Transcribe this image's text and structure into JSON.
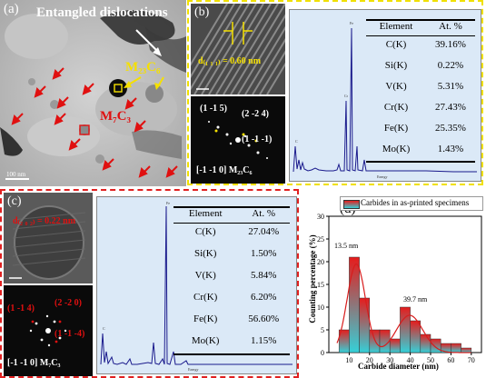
{
  "panel_a": {
    "label": "(a)",
    "annotation_dislocations": "Entangled dislocations",
    "annotation_m23c6": "M₂₃C₆",
    "annotation_m7c3": "M₇C₃",
    "scale_bar": "100 nm"
  },
  "panel_b": {
    "label": "(b)",
    "d_spacing": "d₍₁ ₁ ₁₎ = 0.60 nm",
    "fft_labels": [
      "(1 -1 5)",
      "(2 -2 4)",
      "(1 -1 -1)"
    ],
    "zone_axis": "[-1 -1 0] M₂₃C₆",
    "table": {
      "headers": [
        "Element",
        "At. %"
      ],
      "rows": [
        [
          "C(K)",
          "39.16%"
        ],
        [
          "Si(K)",
          "0.22%"
        ],
        [
          "V(K)",
          "5.31%"
        ],
        [
          "Cr(K)",
          "27.43%"
        ],
        [
          "Fe(K)",
          "25.35%"
        ],
        [
          "Mo(K)",
          "1.43%"
        ]
      ]
    }
  },
  "panel_c": {
    "label": "(c)",
    "d_spacing": "d₍₂ ₀ ₂₎ = 0.22 nm",
    "fft_labels": [
      "(1 -1 4)",
      "(2 -2 0)",
      "(1 -1 -4)"
    ],
    "zone_axis": "[-1 -1 0] M₇C₃",
    "table": {
      "headers": [
        "Element",
        "At. %"
      ],
      "rows": [
        [
          "C(K)",
          "27.04%"
        ],
        [
          "Si(K)",
          "1.50%"
        ],
        [
          "V(K)",
          "5.84%"
        ],
        [
          "Cr(K)",
          "6.20%"
        ],
        [
          "Fe(K)",
          "56.60%"
        ],
        [
          "Mo(K)",
          "1.15%"
        ]
      ]
    }
  },
  "panel_d": {
    "label": "(d)",
    "peak1_label": "13.5 nm",
    "peak2_label": "39.7 nm"
  },
  "chart_data": {
    "type": "bar",
    "legend": "Carbides in as-printed specimens",
    "xlabel": "Carbide diameter (nm)",
    "ylabel": "Counting percentage (%)",
    "xlim": [
      0,
      75
    ],
    "ylim": [
      0,
      30
    ],
    "xticks": [
      "10",
      "20",
      "30",
      "40",
      "50",
      "60",
      "70"
    ],
    "yticks": [
      "0",
      "5",
      "10",
      "15",
      "20",
      "25",
      "30"
    ],
    "bin_width": 5,
    "x": [
      7.5,
      12.5,
      17.5,
      22.5,
      27.5,
      32.5,
      37.5,
      42.5,
      47.5,
      52.5,
      57.5,
      62.5,
      67.5
    ],
    "values": [
      5,
      21,
      12,
      5,
      5,
      3,
      10,
      7,
      4,
      3,
      2,
      2,
      1
    ],
    "fit_peaks": [
      13.5,
      39.7
    ],
    "colors": {
      "bar_top": "#e61c1c",
      "bar_bottom": "#35d0d8",
      "fit": "#d81c1c"
    }
  }
}
